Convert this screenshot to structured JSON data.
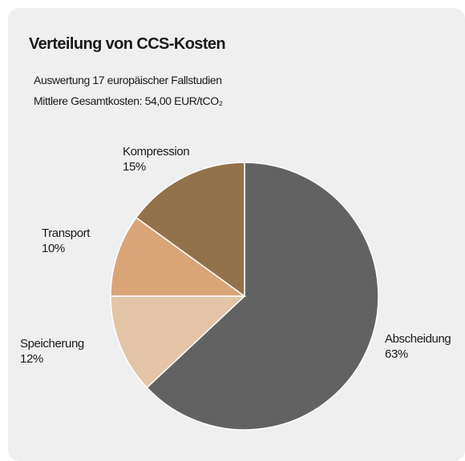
{
  "chart_data": {
    "type": "pie",
    "title": "Verteilung von CCS-Kosten",
    "subtitle": [
      "Auswertung 17 europäischer Fallstudien",
      "Mittlere Gesamtkosten: 54,00 EUR/tCO₂"
    ],
    "categories": [
      "Abscheidung",
      "Speicherung",
      "Transport",
      "Kompression"
    ],
    "values": [
      63,
      12,
      10,
      15
    ],
    "value_labels": [
      "63%",
      "12%",
      "10%",
      "15%"
    ],
    "colors": [
      "#626262",
      "#e3c4a6",
      "#d9a577",
      "#93714a"
    ]
  }
}
